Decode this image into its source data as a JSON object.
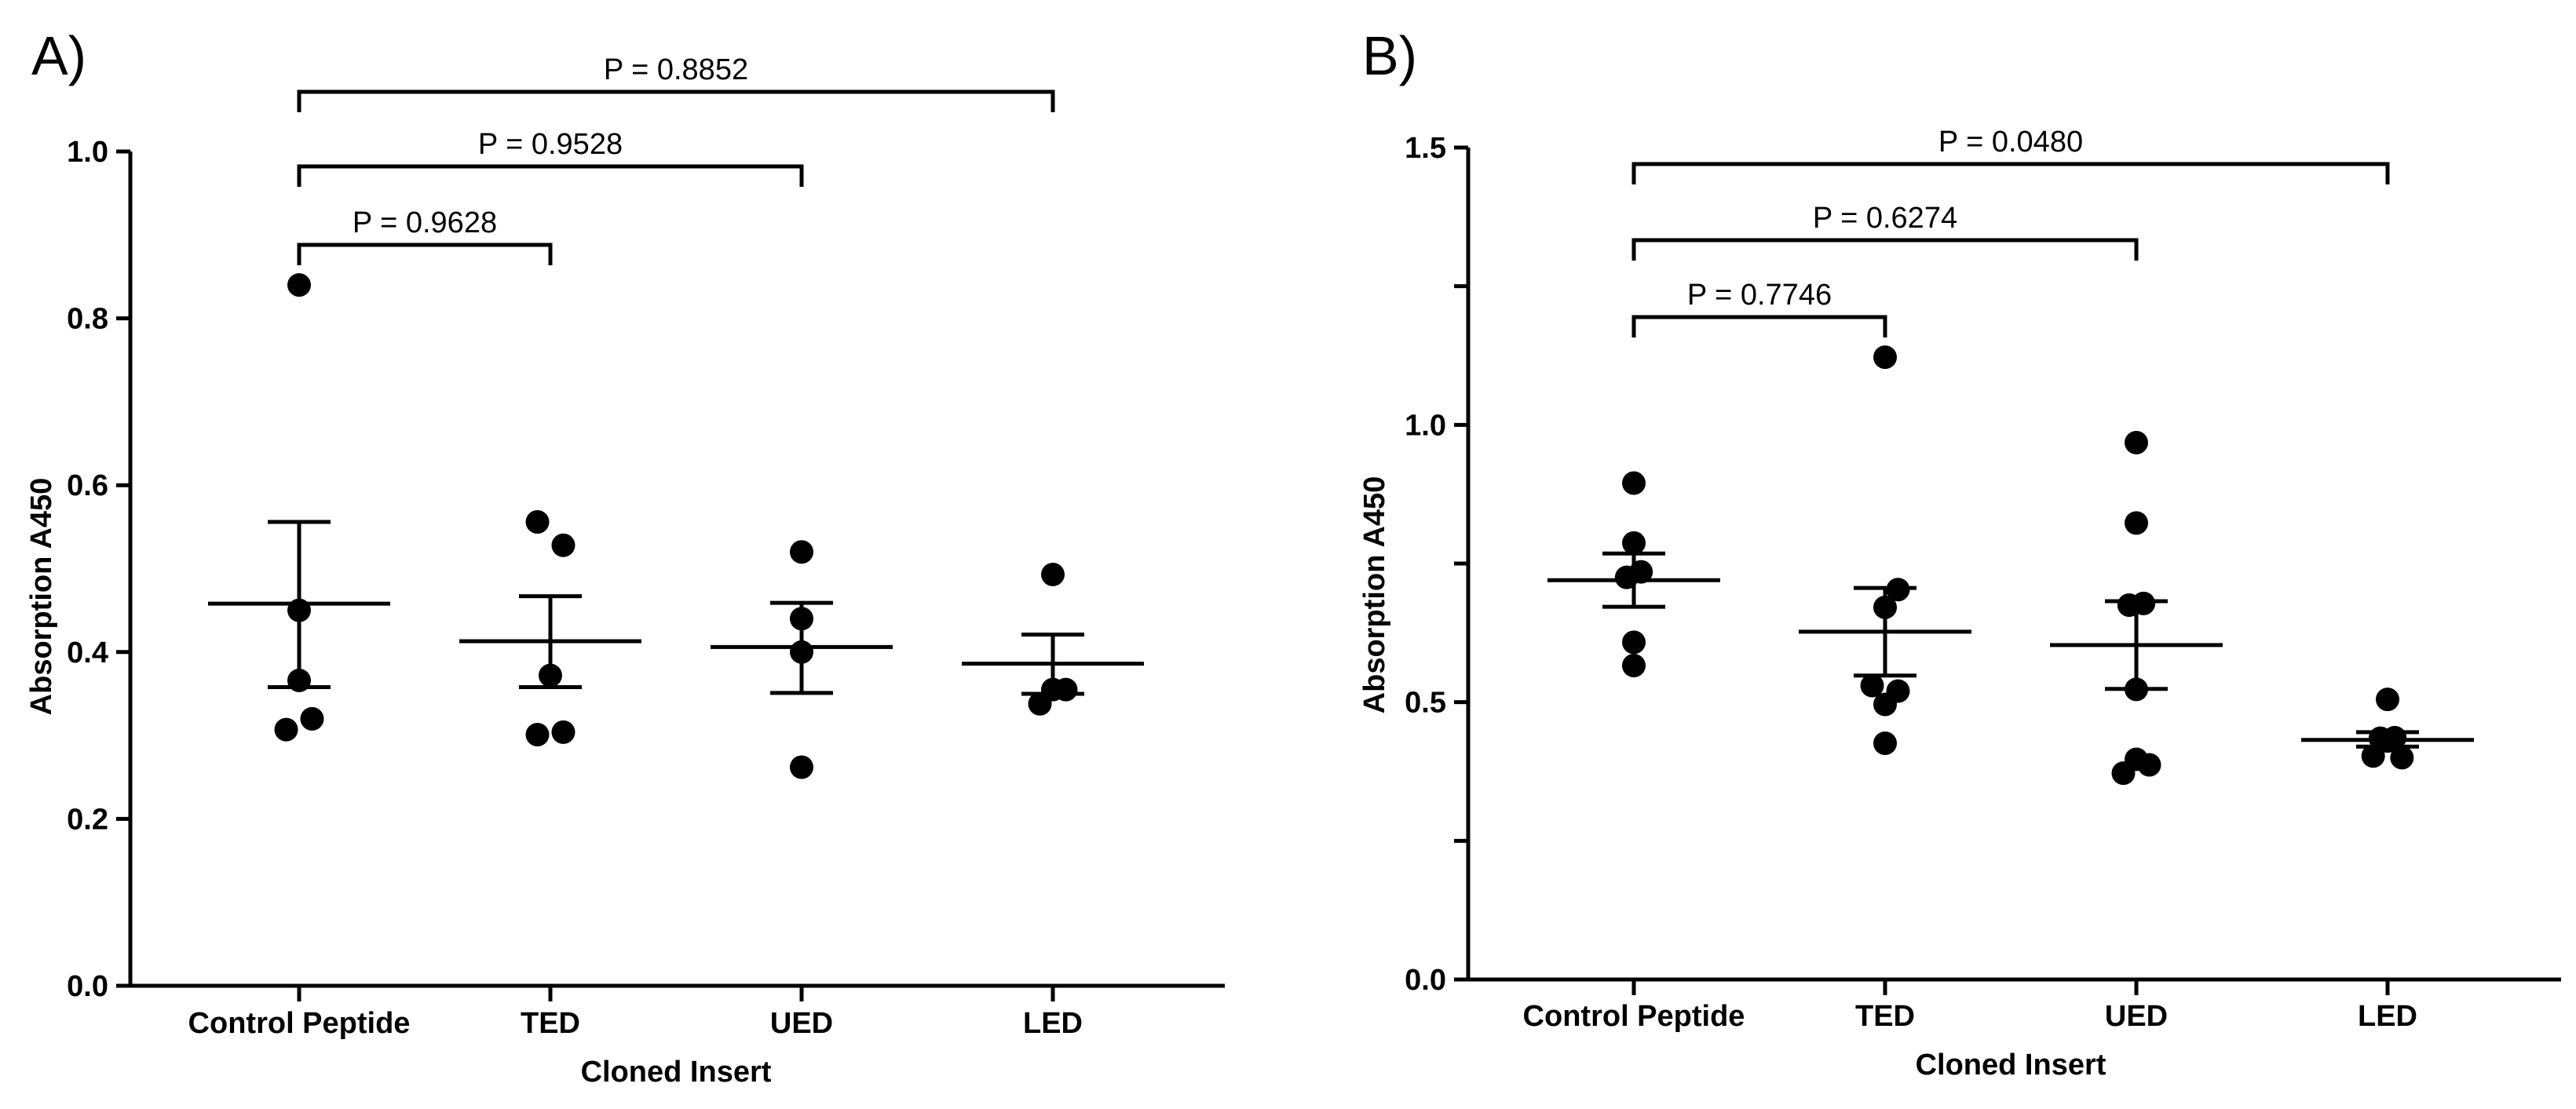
{
  "chart_data": [
    {
      "panel": "A)",
      "type": "scatter",
      "xlabel": "Cloned Insert",
      "ylabel": "Absorption A450",
      "categories": [
        "Control Peptide",
        "TED",
        "UED",
        "LED"
      ],
      "ylim": [
        0,
        1.0
      ],
      "yticks": [
        {
          "value": 0.0,
          "label": "0.0"
        },
        {
          "value": 0.2,
          "label": "0.2"
        },
        {
          "value": 0.4,
          "label": "0.4"
        },
        {
          "value": 0.6,
          "label": "0.6"
        },
        {
          "value": 0.8,
          "label": "0.8"
        },
        {
          "value": 1.0,
          "label": "1.0"
        }
      ],
      "groups": [
        {
          "category": "Control Peptide",
          "mean": 0.458,
          "sem_low": 0.358,
          "sem_high": 0.556,
          "points": [
            {
              "off": 0,
              "y": 0.84
            },
            {
              "off": 0,
              "y": 0.45
            },
            {
              "off": 0,
              "y": 0.366
            },
            {
              "off": -0.18,
              "y": 0.307
            },
            {
              "off": 0.18,
              "y": 0.32
            }
          ]
        },
        {
          "category": "TED",
          "mean": 0.413,
          "sem_low": 0.358,
          "sem_high": 0.467,
          "points": [
            {
              "off": -0.18,
              "y": 0.556
            },
            {
              "off": 0.18,
              "y": 0.528
            },
            {
              "off": 0,
              "y": 0.372
            },
            {
              "off": -0.18,
              "y": 0.301
            },
            {
              "off": 0.18,
              "y": 0.304
            }
          ]
        },
        {
          "category": "UED",
          "mean": 0.406,
          "sem_low": 0.351,
          "sem_high": 0.459,
          "points": [
            {
              "off": 0,
              "y": 0.52
            },
            {
              "off": 0,
              "y": 0.44
            },
            {
              "off": 0,
              "y": 0.4
            },
            {
              "off": 0,
              "y": 0.262
            }
          ]
        },
        {
          "category": "LED",
          "mean": 0.386,
          "sem_low": 0.35,
          "sem_high": 0.421,
          "points": [
            {
              "off": 0,
              "y": 0.493
            },
            {
              "off": -0.18,
              "y": 0.338
            },
            {
              "off": 0,
              "y": 0.355
            },
            {
              "off": 0.18,
              "y": 0.355
            }
          ]
        }
      ],
      "comparisons": [
        {
          "from": "Control Peptide",
          "to": "TED",
          "label": "P = 0.9628"
        },
        {
          "from": "Control Peptide",
          "to": "UED",
          "label": "P = 0.9528"
        },
        {
          "from": "Control Peptide",
          "to": "LED",
          "label": "P = 0.8852"
        }
      ]
    },
    {
      "panel": "B)",
      "type": "scatter",
      "xlabel": "Cloned Insert",
      "ylabel": "Absorption A450",
      "categories": [
        "Control Peptide",
        "TED",
        "UED",
        "LED"
      ],
      "ylim": [
        0,
        1.5
      ],
      "yticks": [
        {
          "value": 0.0,
          "label": "0.0"
        },
        {
          "value": 0.25,
          "label": ""
        },
        {
          "value": 0.5,
          "label": "0.5"
        },
        {
          "value": 0.75,
          "label": ""
        },
        {
          "value": 1.0,
          "label": "1.0"
        },
        {
          "value": 1.25,
          "label": ""
        },
        {
          "value": 1.5,
          "label": "1.5"
        }
      ],
      "groups": [
        {
          "category": "Control Peptide",
          "mean": 0.72,
          "sem_low": 0.672,
          "sem_high": 0.768,
          "points": [
            {
              "off": 0,
              "y": 0.895
            },
            {
              "off": 0,
              "y": 0.787
            },
            {
              "off": -0.1,
              "y": 0.725
            },
            {
              "off": 0.1,
              "y": 0.735
            },
            {
              "off": 0,
              "y": 0.608
            },
            {
              "off": 0,
              "y": 0.566
            }
          ]
        },
        {
          "category": "TED",
          "mean": 0.627,
          "sem_low": 0.548,
          "sem_high": 0.706,
          "points": [
            {
              "off": 0,
              "y": 1.122
            },
            {
              "off": 0.18,
              "y": 0.703
            },
            {
              "off": 0,
              "y": 0.671
            },
            {
              "off": -0.18,
              "y": 0.53
            },
            {
              "off": 0.18,
              "y": 0.52
            },
            {
              "off": 0,
              "y": 0.496
            },
            {
              "off": 0,
              "y": 0.426
            }
          ]
        },
        {
          "category": "UED",
          "mean": 0.603,
          "sem_low": 0.524,
          "sem_high": 0.682,
          "points": [
            {
              "off": 0,
              "y": 0.968
            },
            {
              "off": 0,
              "y": 0.823
            },
            {
              "off": -0.1,
              "y": 0.675
            },
            {
              "off": 0.1,
              "y": 0.678
            },
            {
              "off": 0,
              "y": 0.523
            },
            {
              "off": 0,
              "y": 0.397
            },
            {
              "off": -0.18,
              "y": 0.372
            },
            {
              "off": 0.18,
              "y": 0.387
            }
          ]
        },
        {
          "category": "LED",
          "mean": 0.432,
          "sem_low": 0.42,
          "sem_high": 0.446,
          "points": [
            {
              "off": 0,
              "y": 0.505
            },
            {
              "off": -0.2,
              "y": 0.403
            },
            {
              "off": -0.1,
              "y": 0.435
            },
            {
              "off": 0,
              "y": 0.43
            },
            {
              "off": 0.1,
              "y": 0.436
            },
            {
              "off": 0.2,
              "y": 0.4
            }
          ]
        }
      ],
      "comparisons": [
        {
          "from": "Control Peptide",
          "to": "TED",
          "label": "P = 0.7746"
        },
        {
          "from": "Control Peptide",
          "to": "UED",
          "label": "P = 0.6274"
        },
        {
          "from": "Control Peptide",
          "to": "LED",
          "label": "P = 0.0480"
        }
      ]
    }
  ]
}
